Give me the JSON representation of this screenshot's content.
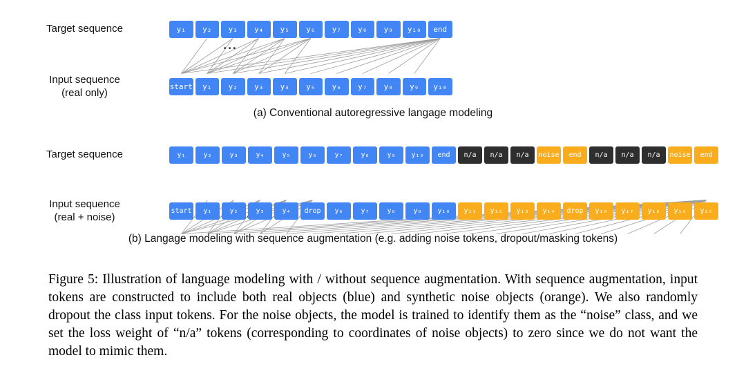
{
  "colors": {
    "blue": "#4285f4",
    "orange": "#f9ad1d",
    "dark": "#2e2e2e"
  },
  "panel_a": {
    "target_label": "Target sequence",
    "input_label_line1": "Input sequence",
    "input_label_line2": "(real only)",
    "ellipsis": "...",
    "caption": "(a) Conventional autoregressive langage modeling",
    "target_tokens": [
      {
        "text": "y₁",
        "color": "blue"
      },
      {
        "text": "y₂",
        "color": "blue"
      },
      {
        "text": "y₃",
        "color": "blue"
      },
      {
        "text": "y₄",
        "color": "blue"
      },
      {
        "text": "y₅",
        "color": "blue"
      },
      {
        "text": "y₆",
        "color": "blue"
      },
      {
        "text": "y₇",
        "color": "blue"
      },
      {
        "text": "y₈",
        "color": "blue"
      },
      {
        "text": "y₉",
        "color": "blue"
      },
      {
        "text": "y₁₀",
        "color": "blue"
      },
      {
        "text": "end",
        "color": "blue"
      }
    ],
    "input_tokens": [
      {
        "text": "start",
        "color": "blue"
      },
      {
        "text": "y₁",
        "color": "blue"
      },
      {
        "text": "y₂",
        "color": "blue"
      },
      {
        "text": "y₃",
        "color": "blue"
      },
      {
        "text": "y₄",
        "color": "blue"
      },
      {
        "text": "y₅",
        "color": "blue"
      },
      {
        "text": "y₆",
        "color": "blue"
      },
      {
        "text": "y₇",
        "color": "blue"
      },
      {
        "text": "y₈",
        "color": "blue"
      },
      {
        "text": "y₉",
        "color": "blue"
      },
      {
        "text": "y₁₀",
        "color": "blue"
      }
    ]
  },
  "panel_b": {
    "target_label": "Target sequence",
    "input_label_line1": "Input sequence",
    "input_label_line2": "(real + noise)",
    "ellipsis": "......",
    "caption": "(b) Langage modeling with sequence augmentation (e.g. adding noise tokens, dropout/masking tokens)",
    "target_tokens": [
      {
        "text": "y₁",
        "color": "blue"
      },
      {
        "text": "y₂",
        "color": "blue"
      },
      {
        "text": "y₃",
        "color": "blue"
      },
      {
        "text": "y₄",
        "color": "blue"
      },
      {
        "text": "y₅",
        "color": "blue"
      },
      {
        "text": "y₆",
        "color": "blue"
      },
      {
        "text": "y₇",
        "color": "blue"
      },
      {
        "text": "y₈",
        "color": "blue"
      },
      {
        "text": "y₉",
        "color": "blue"
      },
      {
        "text": "y₁₀",
        "color": "blue"
      },
      {
        "text": "end",
        "color": "blue"
      },
      {
        "text": "n/a",
        "color": "dark"
      },
      {
        "text": "n/a",
        "color": "dark"
      },
      {
        "text": "n/a",
        "color": "dark"
      },
      {
        "text": "noise",
        "color": "orange"
      },
      {
        "text": "end",
        "color": "orange"
      },
      {
        "text": "n/a",
        "color": "dark"
      },
      {
        "text": "n/a",
        "color": "dark"
      },
      {
        "text": "n/a",
        "color": "dark"
      },
      {
        "text": "noise",
        "color": "orange"
      },
      {
        "text": "end",
        "color": "orange"
      }
    ],
    "input_tokens": [
      {
        "text": "start",
        "color": "blue"
      },
      {
        "text": "y₁",
        "color": "blue"
      },
      {
        "text": "y₂",
        "color": "blue"
      },
      {
        "text": "y₃",
        "color": "blue"
      },
      {
        "text": "y₄",
        "color": "blue"
      },
      {
        "text": "drop",
        "color": "blue"
      },
      {
        "text": "y₆",
        "color": "blue"
      },
      {
        "text": "y₇",
        "color": "blue"
      },
      {
        "text": "y₈",
        "color": "blue"
      },
      {
        "text": "y₉",
        "color": "blue"
      },
      {
        "text": "y₁₀",
        "color": "blue"
      },
      {
        "text": "y₁₁",
        "color": "orange"
      },
      {
        "text": "y₁₂",
        "color": "orange"
      },
      {
        "text": "y₁₃",
        "color": "orange"
      },
      {
        "text": "y₁₄",
        "color": "orange"
      },
      {
        "text": "drop",
        "color": "orange"
      },
      {
        "text": "y₁₆",
        "color": "orange"
      },
      {
        "text": "y₁₇",
        "color": "orange"
      },
      {
        "text": "y₁₈",
        "color": "orange"
      },
      {
        "text": "y₁₉",
        "color": "orange"
      },
      {
        "text": "y₂₀",
        "color": "orange"
      }
    ]
  },
  "figure_caption": "Figure 5: Illustration of language modeling with / without sequence augmentation. With sequence augmentation, input tokens are constructed to include both real objects (blue) and synthetic noise objects (orange). We also randomly dropout the class input tokens. For the noise objects, the model is trained to identify them as the “noise” class, and we set the loss weight of “n/a” tokens (corresponding to coordinates of noise objects) to zero since we do not want the model to mimic them."
}
